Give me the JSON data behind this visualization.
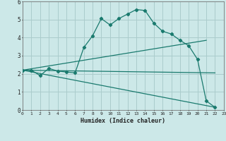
{
  "xlabel": "Humidex (Indice chaleur)",
  "ylabel": "",
  "bg_color": "#cce8e8",
  "plot_bg_color": "#cce8e8",
  "grid_color": "#aacccc",
  "line_color": "#1a7a6e",
  "xlim": [
    0,
    23
  ],
  "ylim": [
    0,
    6
  ],
  "xticks": [
    0,
    1,
    2,
    3,
    4,
    5,
    6,
    7,
    8,
    9,
    10,
    11,
    12,
    13,
    14,
    15,
    16,
    17,
    18,
    19,
    20,
    21,
    22,
    23
  ],
  "yticks": [
    0,
    1,
    2,
    3,
    4,
    5,
    6
  ],
  "lines": [
    {
      "x": [
        0,
        1,
        2,
        3,
        4,
        5,
        6,
        7,
        8,
        9,
        10,
        11,
        12,
        13,
        14,
        15,
        16,
        17,
        18,
        19,
        20,
        21,
        22
      ],
      "y": [
        2.2,
        2.2,
        1.9,
        2.3,
        2.15,
        2.1,
        2.05,
        3.45,
        4.1,
        5.05,
        4.7,
        5.05,
        5.3,
        5.55,
        5.5,
        4.8,
        4.35,
        4.2,
        3.85,
        3.55,
        2.8,
        0.5,
        0.15
      ],
      "marker": true
    },
    {
      "x": [
        0,
        21
      ],
      "y": [
        2.2,
        3.85
      ],
      "marker": false
    },
    {
      "x": [
        0,
        22
      ],
      "y": [
        2.2,
        0.15
      ],
      "marker": false
    },
    {
      "x": [
        0,
        22
      ],
      "y": [
        2.2,
        2.05
      ],
      "marker": false
    }
  ]
}
